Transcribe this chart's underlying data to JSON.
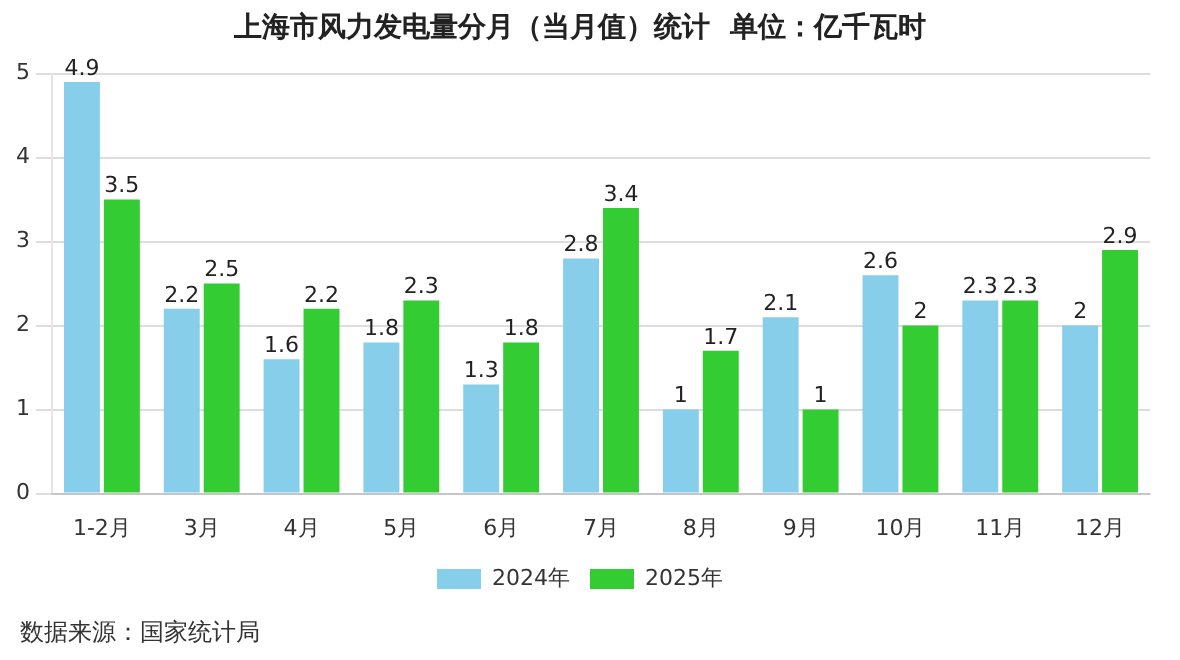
{
  "chart_data": {
    "type": "bar",
    "title": "上海市风力发电量分月（当月值）统计  单位：亿千瓦时",
    "categories": [
      "1-2月",
      "3月",
      "4月",
      "5月",
      "6月",
      "7月",
      "8月",
      "9月",
      "10月",
      "11月",
      "12月"
    ],
    "series": [
      {
        "name": "2024年",
        "color": "#87ceeb",
        "values": [
          4.9,
          2.2,
          1.6,
          1.8,
          1.3,
          2.8,
          1,
          2.1,
          2.6,
          2.3,
          2
        ]
      },
      {
        "name": "2025年",
        "color": "#33cc33",
        "values": [
          3.5,
          2.5,
          2.2,
          2.3,
          1.8,
          3.4,
          1.7,
          1,
          2,
          2.3,
          2.9
        ]
      }
    ],
    "ylim": [
      0,
      5
    ],
    "yticks": [
      0,
      1,
      2,
      3,
      4,
      5
    ],
    "grid": "y",
    "legend": "bottom",
    "data_labels": true,
    "annotations": [
      "数据来源：国家统计局"
    ]
  }
}
